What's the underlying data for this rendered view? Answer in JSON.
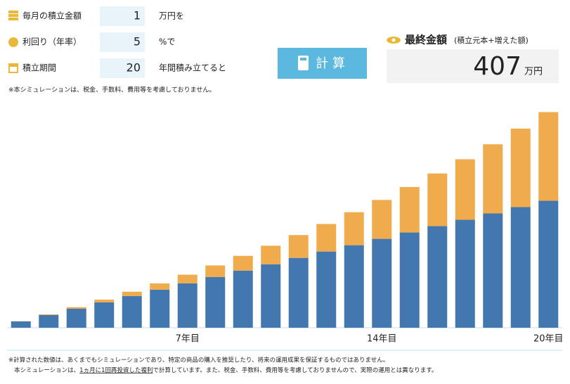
{
  "form": {
    "rows": [
      {
        "label": "毎月の積立金額",
        "value": 1,
        "unit": "万円を"
      },
      {
        "label": "利回り（年率）",
        "value": 5,
        "unit": "%で"
      },
      {
        "label": "積立期間",
        "value": 20,
        "unit": "年間積み立てると"
      }
    ],
    "note": "※本シミュレーションは、税金、手数料、費用等を考慮しておりません。",
    "button": "計 算",
    "result": {
      "title": "最終金額",
      "subtitle": "(積立元本+増えた額)",
      "value": 407,
      "unit": "万円"
    }
  },
  "chart_data": {
    "type": "stacked-bar",
    "categories": [
      null,
      null,
      null,
      null,
      null,
      null,
      "7年目",
      null,
      null,
      null,
      null,
      null,
      null,
      "14年目",
      null,
      null,
      null,
      null,
      null,
      "20年目"
    ],
    "series": [
      {
        "color": "#4377b0",
        "values": [
          12,
          24,
          36,
          48,
          60,
          72,
          84,
          96,
          108,
          120,
          132,
          144,
          156,
          168,
          180,
          192,
          204,
          216,
          228,
          240
        ]
      },
      {
        "color": "#f0ac4c",
        "values": [
          0.3,
          1.3,
          2.9,
          5.1,
          8.1,
          11.8,
          16.3,
          21.7,
          27.9,
          35.0,
          43.1,
          52.1,
          62.3,
          73.5,
          85.9,
          99.5,
          114.4,
          130.7,
          148.3,
          167.5
        ]
      }
    ],
    "ylim": [
      0,
      420
    ]
  },
  "footer": {
    "line1": "※計算された数値は、あくまでもシミュレーションであり、特定の商品の購入を推奨したり、将来の運用成果を保証するものではありません。",
    "line2": [
      "本シミュレーションは、",
      "1ヵ月に1回再投資した複利",
      "で計算しています。また、税金、手数料、費用等を考慮しておりませんので、実際の運用とは異なります。"
    ]
  }
}
